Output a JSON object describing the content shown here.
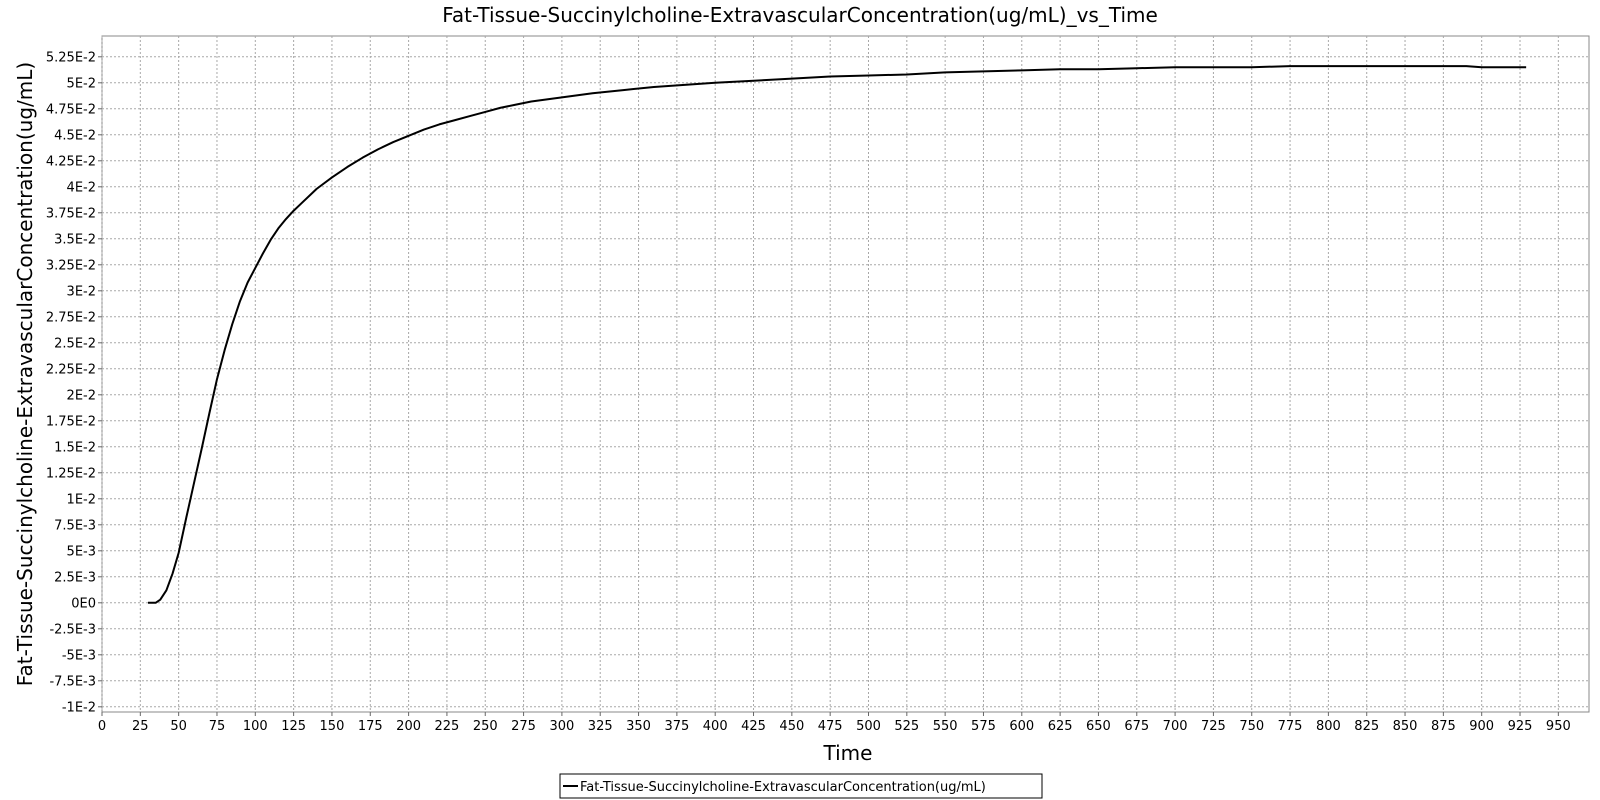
{
  "chart_data": {
    "type": "line",
    "title": "Fat-Tissue-Succinylcholine-ExtravascularConcentration(ug/mL)_vs_Time",
    "xlabel": "Time",
    "ylabel": "Fat-Tissue-Succinylcholine-ExtravascularConcentration(ug/mL)",
    "xlim": [
      0,
      970
    ],
    "ylim": [
      -0.0105,
      0.0545
    ],
    "grid": true,
    "legend_position": "bottom-center",
    "x_ticks": [
      0,
      25,
      50,
      75,
      100,
      125,
      150,
      175,
      200,
      225,
      250,
      275,
      300,
      325,
      350,
      375,
      400,
      425,
      450,
      475,
      500,
      525,
      550,
      575,
      600,
      625,
      650,
      675,
      700,
      725,
      750,
      775,
      800,
      825,
      850,
      875,
      900,
      925,
      950
    ],
    "x_tick_labels": [
      "0",
      "25",
      "50",
      "75",
      "100",
      "125",
      "150",
      "175",
      "200",
      "225",
      "250",
      "275",
      "300",
      "325",
      "350",
      "375",
      "400",
      "425",
      "450",
      "475",
      "500",
      "525",
      "550",
      "575",
      "600",
      "625",
      "650",
      "675",
      "700",
      "725",
      "750",
      "775",
      "800",
      "825",
      "850",
      "875",
      "900",
      "925",
      "950"
    ],
    "y_ticks": [
      -0.01,
      -0.0075,
      -0.005,
      -0.0025,
      0,
      0.0025,
      0.005,
      0.0075,
      0.01,
      0.0125,
      0.015,
      0.0175,
      0.02,
      0.0225,
      0.025,
      0.0275,
      0.03,
      0.0325,
      0.035,
      0.0375,
      0.04,
      0.0425,
      0.045,
      0.0475,
      0.05,
      0.0525
    ],
    "y_tick_labels": [
      "-1E-2",
      "-7.5E-3",
      "-5E-3",
      "-2.5E-3",
      "0E0",
      "2.5E-3",
      "5E-3",
      "7.5E-3",
      "1E-2",
      "1.25E-2",
      "1.5E-2",
      "1.75E-2",
      "2E-2",
      "2.25E-2",
      "2.5E-2",
      "2.75E-2",
      "3E-2",
      "3.25E-2",
      "3.5E-2",
      "3.75E-2",
      "4E-2",
      "4.25E-2",
      "4.5E-2",
      "4.75E-2",
      "5E-2",
      "5.25E-2"
    ],
    "series": [
      {
        "name": "Fat-Tissue-Succinylcholine-ExtravascularConcentration(ug/mL)",
        "color": "#000000",
        "x": [
          30,
          35,
          38,
          42,
          46,
          50,
          55,
          60,
          65,
          70,
          75,
          80,
          85,
          90,
          95,
          100,
          105,
          110,
          115,
          120,
          125,
          130,
          140,
          150,
          160,
          170,
          180,
          190,
          200,
          210,
          220,
          230,
          240,
          250,
          260,
          270,
          280,
          300,
          320,
          340,
          360,
          380,
          400,
          425,
          450,
          475,
          500,
          525,
          550,
          575,
          600,
          625,
          650,
          675,
          700,
          725,
          750,
          775,
          800,
          825,
          850,
          875,
          890,
          900,
          929
        ],
        "y": [
          0,
          0,
          0.0003,
          0.0012,
          0.0028,
          0.0048,
          0.0082,
          0.0115,
          0.0148,
          0.0182,
          0.0215,
          0.0243,
          0.0268,
          0.029,
          0.0308,
          0.0322,
          0.0336,
          0.0349,
          0.036,
          0.0369,
          0.0377,
          0.0384,
          0.0398,
          0.0409,
          0.0419,
          0.0428,
          0.0436,
          0.0443,
          0.0449,
          0.0455,
          0.046,
          0.0464,
          0.0468,
          0.0472,
          0.0476,
          0.0479,
          0.0482,
          0.0486,
          0.049,
          0.0493,
          0.0496,
          0.0498,
          0.05,
          0.0502,
          0.0504,
          0.0506,
          0.0507,
          0.0508,
          0.051,
          0.0511,
          0.0512,
          0.0513,
          0.0513,
          0.0514,
          0.0515,
          0.0515,
          0.0515,
          0.0516,
          0.0516,
          0.0516,
          0.0516,
          0.0516,
          0.0516,
          0.0515,
          0.0515
        ]
      }
    ]
  }
}
